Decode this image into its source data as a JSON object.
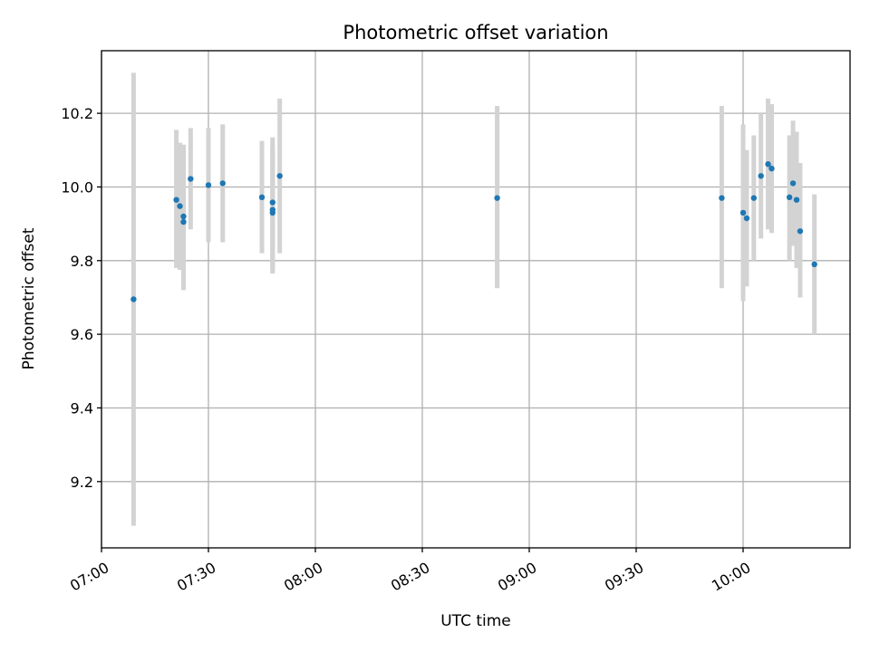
{
  "chart_data": {
    "type": "scatter",
    "title": "Photometric offset variation",
    "xlabel": "UTC time",
    "ylabel": "Photometric offset",
    "xlim": [
      "07:00",
      "10:30"
    ],
    "ylim": [
      9.02,
      10.37
    ],
    "grid": true,
    "x_ticks": [
      "07:00",
      "07:30",
      "08:00",
      "08:30",
      "09:00",
      "09:30",
      "10:00"
    ],
    "y_ticks": [
      "9.2",
      "9.4",
      "9.6",
      "9.8",
      "10.0",
      "10.2"
    ],
    "point_color": "#1f77b4",
    "errorbar_color": "#d3d3d3",
    "points": [
      {
        "t": "07:09",
        "y": 9.695,
        "lo": 9.08,
        "hi": 10.31
      },
      {
        "t": "07:21",
        "y": 9.965,
        "lo": 9.78,
        "hi": 10.155
      },
      {
        "t": "07:22",
        "y": 9.948,
        "lo": 9.775,
        "hi": 10.12
      },
      {
        "t": "07:23",
        "y": 9.905,
        "lo": 9.72,
        "hi": 10.115
      },
      {
        "t": "07:23",
        "y": 9.92,
        "lo": 9.725,
        "hi": 10.11
      },
      {
        "t": "07:25",
        "y": 10.022,
        "lo": 9.885,
        "hi": 10.16
      },
      {
        "t": "07:30",
        "y": 10.005,
        "lo": 9.85,
        "hi": 10.16
      },
      {
        "t": "07:34",
        "y": 10.01,
        "lo": 9.85,
        "hi": 10.17
      },
      {
        "t": "07:45",
        "y": 9.972,
        "lo": 9.82,
        "hi": 10.125
      },
      {
        "t": "07:48",
        "y": 9.958,
        "lo": 9.775,
        "hi": 10.135
      },
      {
        "t": "07:48",
        "y": 9.93,
        "lo": 9.765,
        "hi": 10.11
      },
      {
        "t": "07:48",
        "y": 9.938,
        "lo": 9.775,
        "hi": 10.1
      },
      {
        "t": "07:50",
        "y": 10.03,
        "lo": 9.82,
        "hi": 10.24
      },
      {
        "t": "08:51",
        "y": 9.97,
        "lo": 9.725,
        "hi": 10.22
      },
      {
        "t": "09:54",
        "y": 9.97,
        "lo": 9.725,
        "hi": 10.22
      },
      {
        "t": "10:00",
        "y": 9.93,
        "lo": 9.69,
        "hi": 10.17
      },
      {
        "t": "10:01",
        "y": 9.915,
        "lo": 9.73,
        "hi": 10.1
      },
      {
        "t": "10:03",
        "y": 9.97,
        "lo": 9.8,
        "hi": 10.14
      },
      {
        "t": "10:05",
        "y": 10.03,
        "lo": 9.86,
        "hi": 10.2
      },
      {
        "t": "10:07",
        "y": 10.062,
        "lo": 9.885,
        "hi": 10.24
      },
      {
        "t": "10:08",
        "y": 10.05,
        "lo": 9.875,
        "hi": 10.225
      },
      {
        "t": "10:13",
        "y": 9.972,
        "lo": 9.8,
        "hi": 10.14
      },
      {
        "t": "10:14",
        "y": 10.01,
        "lo": 9.84,
        "hi": 10.18
      },
      {
        "t": "10:15",
        "y": 9.965,
        "lo": 9.78,
        "hi": 10.15
      },
      {
        "t": "10:16",
        "y": 9.88,
        "lo": 9.7,
        "hi": 10.065
      },
      {
        "t": "10:20",
        "y": 9.79,
        "lo": 9.6,
        "hi": 9.98
      }
    ]
  }
}
